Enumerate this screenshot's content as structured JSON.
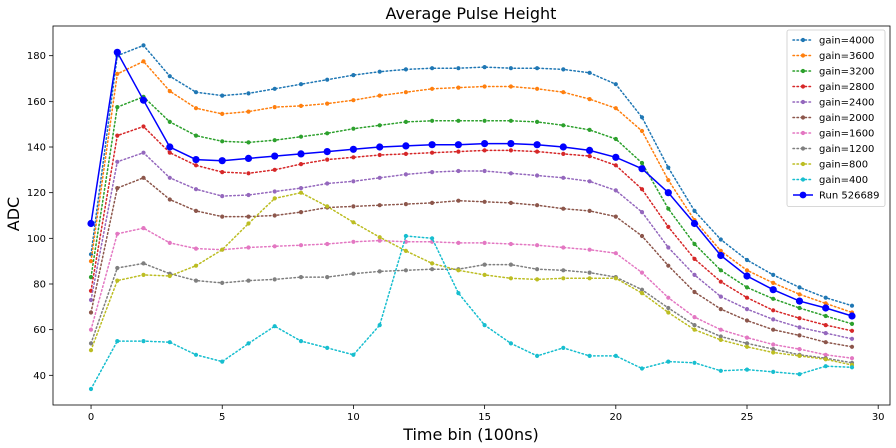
{
  "chart_data": {
    "type": "line",
    "title": "Average Pulse Height",
    "xlabel": "Time bin (100ns)",
    "ylabel": "ADC",
    "xlim": [
      -1.45,
      30.45
    ],
    "ylim": [
      27,
      193
    ],
    "xticks": [
      0,
      5,
      10,
      15,
      20,
      25,
      30
    ],
    "yticks": [
      40,
      60,
      80,
      100,
      120,
      140,
      160,
      180
    ],
    "grid": false,
    "legend_position": "top-right",
    "x": [
      0,
      1,
      2,
      3,
      4,
      5,
      6,
      7,
      8,
      9,
      10,
      11,
      12,
      13,
      14,
      15,
      16,
      17,
      18,
      19,
      20,
      21,
      22,
      23,
      24,
      25,
      26,
      27,
      28,
      29
    ],
    "series": [
      {
        "name": "gain=4000",
        "color": "#1f77b4",
        "style": "dotted",
        "values": [
          93,
          180,
          184.5,
          171,
          164,
          162.5,
          163.5,
          165.5,
          167.5,
          169.5,
          171.5,
          173,
          174,
          174.5,
          174.5,
          175,
          174.5,
          174.5,
          174,
          172.5,
          167.5,
          153,
          131,
          112,
          99.5,
          90.5,
          84,
          78.5,
          74,
          70.5
        ]
      },
      {
        "name": "gain=3600",
        "color": "#ff7f0e",
        "style": "dotted",
        "values": [
          90,
          172,
          177.5,
          164.5,
          157,
          154.5,
          155.5,
          157.5,
          158,
          159,
          160.5,
          162.5,
          164,
          165.5,
          166,
          166.5,
          166.5,
          165.5,
          164,
          161,
          157,
          147,
          125.5,
          108,
          94.5,
          86,
          80.5,
          75.5,
          71.5,
          67.5
        ]
      },
      {
        "name": "gain=3200",
        "color": "#2ca02c",
        "style": "dotted",
        "values": [
          83,
          157.5,
          162,
          151,
          145,
          142.5,
          142,
          143,
          144.5,
          146,
          148,
          149.5,
          151,
          151.5,
          151.5,
          151.5,
          151.5,
          151,
          149.5,
          147.5,
          143.5,
          133,
          113,
          97.5,
          86,
          78.5,
          73.5,
          69.5,
          66,
          62.5
        ]
      },
      {
        "name": "gain=2800",
        "color": "#d62728",
        "style": "dotted",
        "values": [
          77,
          145,
          149,
          137.5,
          132,
          129,
          128.5,
          130,
          132.5,
          134.5,
          135.5,
          136.5,
          137,
          137.5,
          138,
          138.5,
          138.5,
          138,
          137,
          136,
          132,
          121.5,
          105,
          91,
          81,
          74,
          68.5,
          65,
          62,
          59.5
        ]
      },
      {
        "name": "gain=2400",
        "color": "#9467bd",
        "style": "dotted",
        "values": [
          73,
          133.5,
          137.5,
          126.5,
          121.5,
          118.5,
          119,
          120.5,
          122,
          124,
          125,
          126.5,
          128,
          129,
          129.5,
          129.5,
          128.5,
          127.5,
          126.5,
          125,
          121,
          111.5,
          96,
          84,
          74.5,
          69,
          64.5,
          61,
          58.5,
          56
        ]
      },
      {
        "name": "gain=2000",
        "color": "#8c564b",
        "style": "dotted",
        "values": [
          67.5,
          122,
          126.5,
          117,
          112,
          109.5,
          109.5,
          110,
          111.5,
          113.5,
          114,
          114.5,
          115,
          115.5,
          116.5,
          116,
          115.5,
          114.5,
          113,
          112,
          109.5,
          101,
          88,
          76.5,
          69,
          64,
          60,
          57.5,
          54.5,
          52.5
        ]
      },
      {
        "name": "gain=1600",
        "color": "#e377c2",
        "style": "dotted",
        "values": [
          60,
          102,
          104.5,
          98,
          95.5,
          95,
          96,
          96.5,
          97,
          97.5,
          98.5,
          99,
          98.5,
          98.5,
          98,
          98,
          97.5,
          97,
          96,
          95,
          93.5,
          85,
          74,
          65.5,
          60,
          56.5,
          53.5,
          51.5,
          49,
          47.5
        ]
      },
      {
        "name": "gain=1200",
        "color": "#7f7f7f",
        "style": "dotted",
        "values": [
          54,
          87,
          89,
          84.5,
          81.5,
          80.5,
          81.5,
          82,
          83,
          83,
          84.5,
          85.5,
          86,
          86.5,
          86.5,
          88.5,
          88.5,
          86.5,
          86,
          85,
          83,
          77.5,
          69.5,
          62,
          57,
          54,
          51.5,
          49,
          47.5,
          45.5
        ]
      },
      {
        "name": "gain=800",
        "color": "#bcbd22",
        "style": "dotted",
        "values": [
          51,
          81.5,
          84,
          83.5,
          88,
          95,
          106.5,
          117.5,
          120,
          114,
          107,
          100.5,
          94.5,
          89,
          86,
          84,
          82.5,
          82,
          82.5,
          82.5,
          82.5,
          76,
          67.5,
          60,
          55.5,
          52.5,
          50,
          48.5,
          47,
          44.5
        ]
      },
      {
        "name": "gain=400",
        "color": "#17becf",
        "style": "dotted",
        "values": [
          34,
          55,
          55,
          54.5,
          49,
          46,
          54,
          61.5,
          55,
          52,
          49,
          62,
          101,
          100,
          76,
          62,
          54,
          48.5,
          52,
          48.5,
          48.5,
          43,
          46,
          45.5,
          42,
          42.5,
          41.5,
          40.5,
          44,
          43.5
        ]
      },
      {
        "name": "Run 526689",
        "color": "#0000ff",
        "style": "solid",
        "values": [
          106.5,
          181.5,
          160.5,
          140,
          134.5,
          134,
          135,
          136,
          137,
          138,
          139,
          140,
          140.5,
          141,
          141,
          141.5,
          141.5,
          141,
          140,
          138.5,
          135.5,
          130.5,
          120,
          106.5,
          92.5,
          83.5,
          77.5,
          72.5,
          69.5,
          66
        ]
      }
    ]
  }
}
